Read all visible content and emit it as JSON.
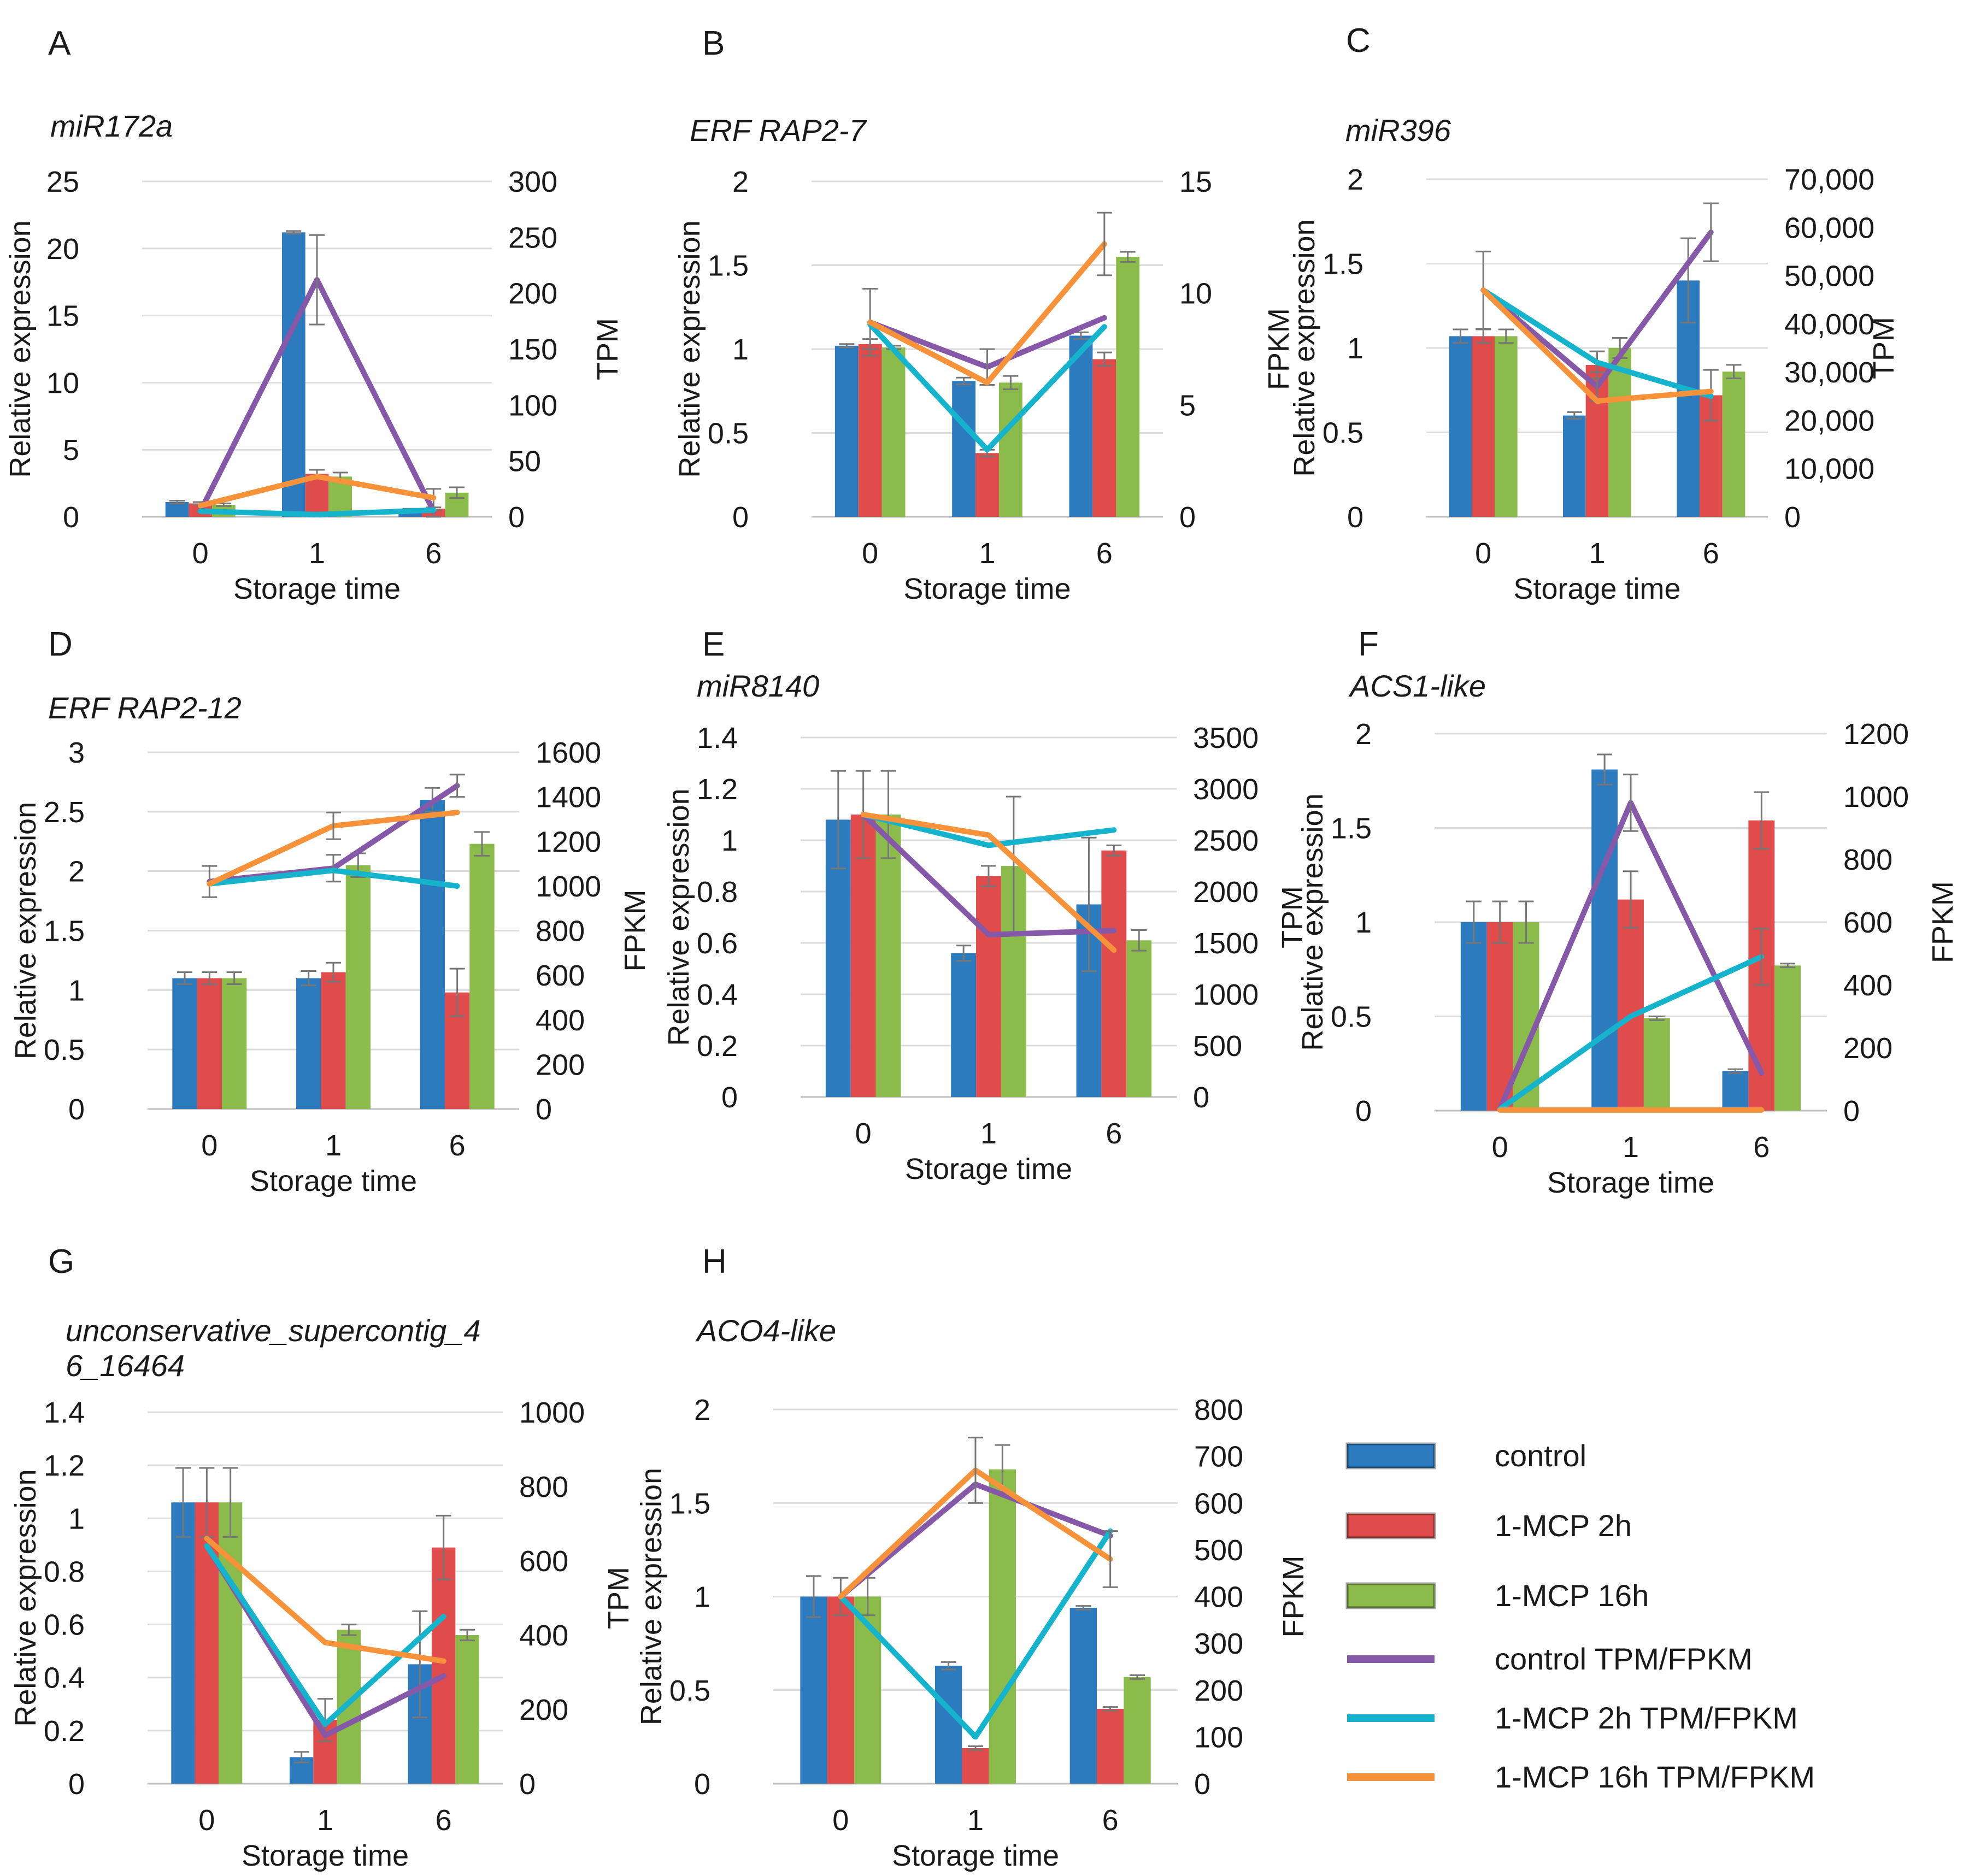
{
  "colors": {
    "control": "#2c7bbf",
    "mcp2h": "#e04b4b",
    "mcp16h": "#8bbb4a",
    "control_line": "#8559a8",
    "mcp2h_line": "#16b4cc",
    "mcp16h_line": "#f5923a",
    "grid": "#dcdcdc",
    "errbar": "#777777"
  },
  "legend": {
    "bars": [
      {
        "label": "control",
        "key": "control"
      },
      {
        "label": "1-MCP 2h",
        "key": "mcp2h"
      },
      {
        "label": "1-MCP 16h",
        "key": "mcp16h"
      }
    ],
    "lines": [
      {
        "label": "control TPM/FPKM",
        "key": "control_line"
      },
      {
        "label": "1-MCP 2h TPM/FPKM",
        "key": "mcp2h_line"
      },
      {
        "label": "1-MCP 16h TPM/FPKM",
        "key": "mcp16h_line"
      }
    ]
  },
  "chart_data": [
    {
      "panel": "A",
      "title": [
        "miR172a"
      ],
      "type": "bar+line",
      "xlabel": "Storage time",
      "ylabel": "Relative expression",
      "y2label": "TPM",
      "categories": [
        "0",
        "1",
        "6"
      ],
      "ylim": [
        0,
        25
      ],
      "yticks": [
        "0",
        "5",
        "10",
        "15",
        "20",
        "25"
      ],
      "y2lim": [
        0,
        300
      ],
      "y2ticks": [
        "0",
        "50",
        "100",
        "150",
        "200",
        "250",
        "300"
      ],
      "bars": [
        {
          "name": "control",
          "values": [
            1.1,
            21.2,
            0.5
          ],
          "err": [
            0.1,
            0.1,
            0.1
          ]
        },
        {
          "name": "1-MCP 2h",
          "values": [
            1.0,
            3.2,
            0.6
          ],
          "err": [
            0.1,
            0.3,
            0.1
          ]
        },
        {
          "name": "1-MCP 16h",
          "values": [
            0.9,
            3.0,
            1.8
          ],
          "err": [
            0.1,
            0.3,
            0.4
          ]
        }
      ],
      "lines": [
        {
          "name": "control TPM/FPKM",
          "values": [
            5,
            212,
            5
          ],
          "err": [
            0,
            40,
            20
          ]
        },
        {
          "name": "1-MCP 2h TPM/FPKM",
          "values": [
            5,
            2,
            6
          ],
          "err": [
            0,
            0,
            0
          ]
        },
        {
          "name": "1-MCP 16h TPM/FPKM",
          "values": [
            10,
            36,
            17
          ],
          "err": [
            0,
            0,
            0
          ]
        }
      ]
    },
    {
      "panel": "B",
      "title": [
        "ERF RAP2-7"
      ],
      "type": "bar+line",
      "xlabel": "Storage time",
      "ylabel": "Relative expression",
      "y2label": "FPKM",
      "categories": [
        "0",
        "1",
        "6"
      ],
      "ylim": [
        0,
        2
      ],
      "yticks": [
        "0",
        "0.5",
        "1",
        "1.5",
        "2"
      ],
      "y2lim": [
        0,
        15
      ],
      "y2ticks": [
        "0",
        "5",
        "10",
        "15"
      ],
      "bars": [
        {
          "name": "control",
          "values": [
            1.02,
            0.81,
            1.08
          ],
          "err": [
            0.01,
            0.02,
            0.02
          ]
        },
        {
          "name": "1-MCP 2h",
          "values": [
            1.03,
            0.38,
            0.94
          ],
          "err": [
            0.03,
            0.02,
            0.04
          ]
        },
        {
          "name": "1-MCP 16h",
          "values": [
            1.01,
            0.8,
            1.55
          ],
          "err": [
            0.01,
            0.04,
            0.03
          ]
        }
      ],
      "lines": [
        {
          "name": "control TPM/FPKM",
          "values": [
            8.7,
            6.7,
            8.9
          ],
          "err": [
            1.5,
            0.8,
            0
          ]
        },
        {
          "name": "1-MCP 2h TPM/FPKM",
          "values": [
            8.6,
            3.0,
            8.5
          ],
          "err": [
            0,
            0,
            0
          ]
        },
        {
          "name": "1-MCP 16h TPM/FPKM",
          "values": [
            8.7,
            6.0,
            12.2
          ],
          "err": [
            0,
            0,
            1.4
          ]
        }
      ]
    },
    {
      "panel": "C",
      "title": [
        "miR396"
      ],
      "type": "bar+line",
      "xlabel": "Storage time",
      "ylabel": "Relative expression",
      "y2label": "TPM",
      "categories": [
        "0",
        "1",
        "6"
      ],
      "ylim": [
        0,
        2
      ],
      "yticks": [
        "0",
        "0.5",
        "1",
        "1.5",
        "2"
      ],
      "y2lim": [
        0,
        70000
      ],
      "y2ticks": [
        "0",
        "10,000",
        "20,000",
        "30,000",
        "40,000",
        "50,000",
        "60,000",
        "70,000"
      ],
      "bars": [
        {
          "name": "control",
          "values": [
            1.07,
            0.6,
            1.4
          ],
          "err": [
            0.04,
            0.02,
            0.25
          ]
        },
        {
          "name": "1-MCP 2h",
          "values": [
            1.07,
            0.9,
            0.72
          ],
          "err": [
            0.04,
            0.08,
            0.15
          ]
        },
        {
          "name": "1-MCP 16h",
          "values": [
            1.07,
            1.0,
            0.86
          ],
          "err": [
            0.04,
            0.06,
            0.04
          ]
        }
      ],
      "lines": [
        {
          "name": "control TPM/FPKM",
          "values": [
            47000,
            27000,
            59000
          ],
          "err": [
            8000,
            3000,
            6000
          ]
        },
        {
          "name": "1-MCP 2h TPM/FPKM",
          "values": [
            47000,
            32000,
            25000
          ],
          "err": [
            0,
            0,
            0
          ]
        },
        {
          "name": "1-MCP 16h TPM/FPKM",
          "values": [
            47000,
            24000,
            26000
          ],
          "err": [
            0,
            0,
            0
          ]
        }
      ]
    },
    {
      "panel": "D",
      "title": [
        "ERF RAP2-12"
      ],
      "type": "bar+line",
      "xlabel": "Storage time",
      "ylabel": "Relative expression",
      "y2label": "FPKM",
      "categories": [
        "0",
        "1",
        "6"
      ],
      "ylim": [
        0,
        3
      ],
      "yticks": [
        "0",
        "0.5",
        "1",
        "1.5",
        "2",
        "2.5",
        "3"
      ],
      "y2lim": [
        0,
        1600
      ],
      "y2ticks": [
        "0",
        "200",
        "400",
        "600",
        "800",
        "1000",
        "1200",
        "1400",
        "1600"
      ],
      "bars": [
        {
          "name": "control",
          "values": [
            1.1,
            1.1,
            2.6
          ],
          "err": [
            0.05,
            0.06,
            0.1
          ]
        },
        {
          "name": "1-MCP 2h",
          "values": [
            1.1,
            1.15,
            0.98
          ],
          "err": [
            0.05,
            0.08,
            0.2
          ]
        },
        {
          "name": "1-MCP 16h",
          "values": [
            1.1,
            2.05,
            2.23
          ],
          "err": [
            0.05,
            0.1,
            0.1
          ]
        }
      ],
      "lines": [
        {
          "name": "control TPM/FPKM",
          "values": [
            1020,
            1080,
            1450
          ],
          "err": [
            70,
            60,
            50
          ]
        },
        {
          "name": "1-MCP 2h TPM/FPKM",
          "values": [
            1010,
            1070,
            1000
          ],
          "err": [
            0,
            0,
            0
          ]
        },
        {
          "name": "1-MCP 16h TPM/FPKM",
          "values": [
            1010,
            1270,
            1330
          ],
          "err": [
            0,
            60,
            0
          ]
        }
      ]
    },
    {
      "panel": "E",
      "title": [
        "miR8140"
      ],
      "type": "bar+line",
      "xlabel": "Storage time",
      "ylabel": "Relative expression",
      "y2label": "TPM",
      "categories": [
        "0",
        "1",
        "6"
      ],
      "ylim": [
        0,
        1.4
      ],
      "yticks": [
        "0",
        "0.2",
        "0.4",
        "0.6",
        "0.8",
        "1",
        "1.2",
        "1.4"
      ],
      "y2lim": [
        0,
        3500
      ],
      "y2ticks": [
        "0",
        "500",
        "1000",
        "1500",
        "2000",
        "2500",
        "3000",
        "3500"
      ],
      "bars": [
        {
          "name": "control",
          "values": [
            1.08,
            0.56,
            0.75
          ],
          "err": [
            0.19,
            0.03,
            0.26
          ]
        },
        {
          "name": "1-MCP 2h",
          "values": [
            1.1,
            0.86,
            0.96
          ],
          "err": [
            0.17,
            0.04,
            0.02
          ]
        },
        {
          "name": "1-MCP 16h",
          "values": [
            1.1,
            0.9,
            0.61
          ],
          "err": [
            0.17,
            0.27,
            0.04
          ]
        }
      ],
      "lines": [
        {
          "name": "control TPM/FPKM",
          "values": [
            2750,
            1580,
            1620
          ],
          "err": [
            0,
            0,
            0
          ]
        },
        {
          "name": "1-MCP 2h TPM/FPKM",
          "values": [
            2750,
            2450,
            2600
          ],
          "err": [
            0,
            0,
            0
          ]
        },
        {
          "name": "1-MCP 16h TPM/FPKM",
          "values": [
            2750,
            2550,
            1430
          ],
          "err": [
            0,
            0,
            0
          ]
        }
      ]
    },
    {
      "panel": "F",
      "title": [
        "ACS1-like"
      ],
      "type": "bar+line",
      "xlabel": "Storage time",
      "ylabel": "Relative expression",
      "y2label": "FPKM",
      "categories": [
        "0",
        "1",
        "6"
      ],
      "ylim": [
        0,
        2
      ],
      "yticks": [
        "0",
        "0.5",
        "1",
        "1.5",
        "2"
      ],
      "y2lim": [
        0,
        1200
      ],
      "y2ticks": [
        "0",
        "200",
        "400",
        "600",
        "800",
        "1000",
        "1200"
      ],
      "bars": [
        {
          "name": "control",
          "values": [
            1.0,
            1.81,
            0.21
          ],
          "err": [
            0.11,
            0.08,
            0.01
          ]
        },
        {
          "name": "1-MCP 2h",
          "values": [
            1.0,
            1.12,
            1.54
          ],
          "err": [
            0.11,
            0.15,
            0.15
          ]
        },
        {
          "name": "1-MCP 16h",
          "values": [
            1.0,
            0.49,
            0.77
          ],
          "err": [
            0.11,
            0.01,
            0.01
          ]
        }
      ],
      "lines": [
        {
          "name": "control TPM/FPKM",
          "values": [
            5,
            980,
            120
          ],
          "err": [
            0,
            90,
            0
          ]
        },
        {
          "name": "1-MCP 2h TPM/FPKM",
          "values": [
            5,
            300,
            490
          ],
          "err": [
            0,
            0,
            90
          ]
        },
        {
          "name": "1-MCP 16h TPM/FPKM",
          "values": [
            2,
            2,
            2
          ],
          "err": [
            0,
            0,
            0
          ]
        }
      ]
    },
    {
      "panel": "G",
      "title": [
        "unconservative_supercontig_4",
        "6_16464"
      ],
      "type": "bar+line",
      "xlabel": "Storage time",
      "ylabel": "Relative expression",
      "y2label": "TPM",
      "categories": [
        "0",
        "1",
        "6"
      ],
      "ylim": [
        0,
        1.4
      ],
      "yticks": [
        "0",
        "0.2",
        "0.4",
        "0.6",
        "0.8",
        "1",
        "1.2",
        "1.4"
      ],
      "y2lim": [
        0,
        1000
      ],
      "y2ticks": [
        "0",
        "200",
        "400",
        "600",
        "800",
        "1000"
      ],
      "bars": [
        {
          "name": "control",
          "values": [
            1.06,
            0.1,
            0.45
          ],
          "err": [
            0.13,
            0.02,
            0.2
          ]
        },
        {
          "name": "1-MCP 2h",
          "values": [
            1.06,
            0.24,
            0.89
          ],
          "err": [
            0.13,
            0.08,
            0.12
          ]
        },
        {
          "name": "1-MCP 16h",
          "values": [
            1.06,
            0.58,
            0.56
          ],
          "err": [
            0.13,
            0.02,
            0.02
          ]
        }
      ],
      "lines": [
        {
          "name": "control TPM/FPKM",
          "values": [
            640,
            130,
            290
          ],
          "err": [
            0,
            0,
            0
          ]
        },
        {
          "name": "1-MCP 2h TPM/FPKM",
          "values": [
            640,
            160,
            450
          ],
          "err": [
            0,
            0,
            0
          ]
        },
        {
          "name": "1-MCP 16h TPM/FPKM",
          "values": [
            660,
            380,
            330
          ],
          "err": [
            0,
            0,
            0
          ]
        }
      ]
    },
    {
      "panel": "H",
      "title": [
        "ACO4-like"
      ],
      "type": "bar+line",
      "xlabel": "Storage time",
      "ylabel": "Relative expression",
      "y2label": "FPKM",
      "categories": [
        "0",
        "1",
        "6"
      ],
      "ylim": [
        0,
        2
      ],
      "yticks": [
        "0",
        "0.5",
        "1",
        "1.5",
        "2"
      ],
      "y2lim": [
        0,
        800
      ],
      "y2ticks": [
        "0",
        "100",
        "200",
        "300",
        "400",
        "500",
        "600",
        "700",
        "800"
      ],
      "bars": [
        {
          "name": "control",
          "values": [
            1.0,
            0.63,
            0.94
          ],
          "err": [
            0.11,
            0.02,
            0.01
          ]
        },
        {
          "name": "1-MCP 2h",
          "values": [
            1.0,
            0.19,
            0.4
          ],
          "err": [
            0.1,
            0.01,
            0.01
          ]
        },
        {
          "name": "1-MCP 16h",
          "values": [
            1.0,
            1.68,
            0.57
          ],
          "err": [
            0.1,
            0.13,
            0.01
          ]
        }
      ],
      "lines": [
        {
          "name": "control TPM/FPKM",
          "values": [
            400,
            640,
            530
          ],
          "err": [
            0,
            0,
            0
          ]
        },
        {
          "name": "1-MCP 2h TPM/FPKM",
          "values": [
            400,
            100,
            540
          ],
          "err": [
            0,
            0,
            0
          ]
        },
        {
          "name": "1-MCP 16h TPM/FPKM",
          "values": [
            400,
            670,
            480
          ],
          "err": [
            0,
            70,
            60
          ]
        }
      ]
    }
  ]
}
